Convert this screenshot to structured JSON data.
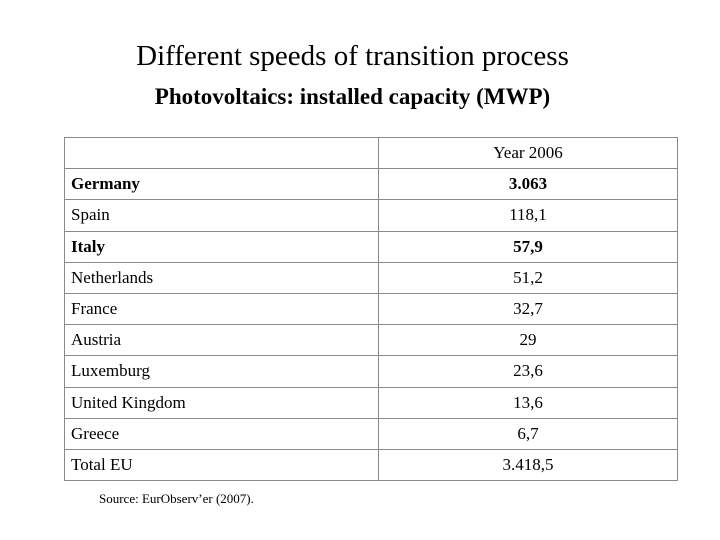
{
  "title": "Different speeds of transition process",
  "subtitle": "Photovoltaics: installed capacity (MWP)",
  "table": {
    "header": {
      "label": "",
      "year": "Year 2006"
    },
    "rows": [
      {
        "country": "Germany",
        "value": "3.063",
        "bold": true
      },
      {
        "country": "Spain",
        "value": "118,1",
        "bold": false
      },
      {
        "country": "Italy",
        "value": "57,9",
        "bold": true
      },
      {
        "country": "Netherlands",
        "value": "51,2",
        "bold": false
      },
      {
        "country": "France",
        "value": "32,7",
        "bold": false
      },
      {
        "country": "Austria",
        "value": "29",
        "bold": false
      },
      {
        "country": "Luxemburg",
        "value": "23,6",
        "bold": false
      },
      {
        "country": "United Kingdom",
        "value": "13,6",
        "bold": false
      },
      {
        "country": "Greece",
        "value": "6,7",
        "bold": false
      },
      {
        "country": "Total EU",
        "value": "3.418,5",
        "bold": false
      }
    ]
  },
  "source": "Source: EurObserv’er (2007)."
}
